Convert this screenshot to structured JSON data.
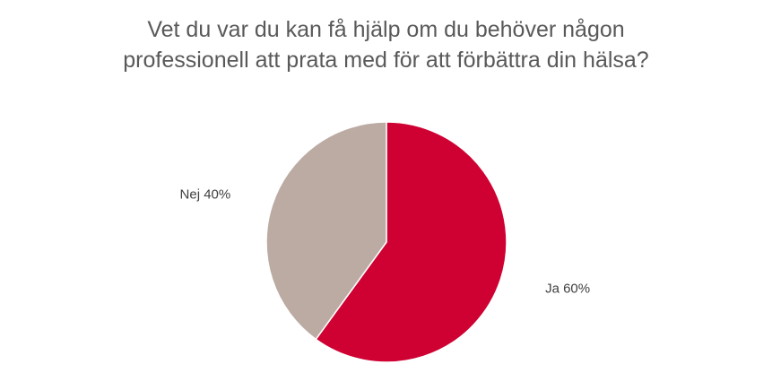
{
  "chart_data": {
    "type": "pie",
    "title": "Vet du var du kan få hjälp om du behöver någon\nprofessionell att prata med för att förbättra din hälsa?",
    "categories": [
      "Ja",
      "Nej"
    ],
    "values": [
      60,
      40
    ],
    "value_labels": [
      "60%",
      "40%"
    ],
    "colors": [
      "#cf0032",
      "#bbaba3"
    ]
  }
}
